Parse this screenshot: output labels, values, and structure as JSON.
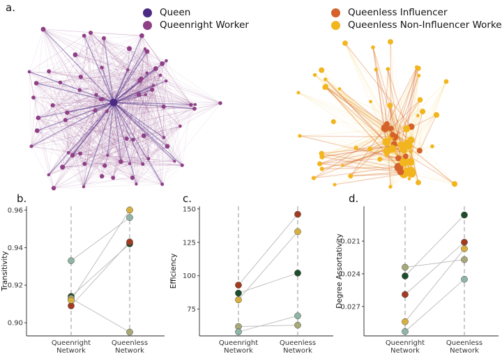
{
  "figure": {
    "panel_labels": [
      "a.",
      "b.",
      "c.",
      "d."
    ]
  },
  "legend": {
    "left": [
      {
        "label": "Queen",
        "color": "#4b2a84"
      },
      {
        "label": "Queenright Worker",
        "color": "#8e3f86"
      }
    ],
    "right": [
      {
        "label": "Queenless Influencer",
        "color": "#d4622a"
      },
      {
        "label": "Queenless Non-Influencer Worker",
        "color": "#f2b51e"
      }
    ]
  },
  "networks": {
    "queenright": {
      "queen_color": "#4b2a84",
      "worker_color": "#8e3f86"
    },
    "queenless": {
      "influencer_color": "#d4622a",
      "worker_color": "#f2b51e"
    }
  },
  "chart_data": [
    {
      "type": "scatter",
      "panel": "b.",
      "ylabel": "Transitivity",
      "categories": [
        "Queenright\nNetwork",
        "Queenless\nNetwork"
      ],
      "ylim": [
        0.893,
        0.962
      ],
      "yticks": [
        0.9,
        0.92,
        0.94,
        0.96
      ],
      "ytick_labels": [
        "0.90",
        "0.92",
        "0.94",
        "0.96"
      ],
      "series": [
        {
          "color": "#8fb5a5",
          "values": [
            0.933,
            0.956
          ]
        },
        {
          "color": "#1e4d2b",
          "values": [
            0.914,
            0.942
          ]
        },
        {
          "color": "#a8a878",
          "values": [
            0.913,
            0.895
          ]
        },
        {
          "color": "#a33b20",
          "values": [
            0.909,
            0.943
          ]
        },
        {
          "color": "#d7b040",
          "values": [
            0.912,
            0.96
          ]
        }
      ]
    },
    {
      "type": "scatter",
      "panel": "c.",
      "ylabel": "Efficiency",
      "categories": [
        "Queenright\nNetwork",
        "Queenless\nNetwork"
      ],
      "ylim": [
        55,
        152
      ],
      "yticks": [
        75,
        100,
        125,
        150
      ],
      "ytick_labels": [
        "75",
        "100",
        "125",
        "150"
      ],
      "series": [
        {
          "color": "#a33b20",
          "values": [
            93,
            146
          ]
        },
        {
          "color": "#1e4d2b",
          "values": [
            87,
            102
          ]
        },
        {
          "color": "#d7b040",
          "values": [
            82,
            133
          ]
        },
        {
          "color": "#a8a878",
          "values": [
            62,
            63
          ]
        },
        {
          "color": "#8fb5a5",
          "values": [
            58,
            70
          ]
        }
      ]
    },
    {
      "type": "scatter",
      "panel": "d.",
      "ylabel": "Degree Assortativity",
      "categories": [
        "Queenright\nNetwork",
        "Queenless\nNetwork"
      ],
      "ylim": [
        -0.0297,
        -0.0178
      ],
      "yticks": [
        -0.021,
        -0.024,
        -0.027
      ],
      "ytick_labels": [
        "-0.021",
        "-0.024",
        "-0.027"
      ],
      "series": [
        {
          "color": "#a8a878",
          "values": [
            -0.0234,
            -0.0227
          ]
        },
        {
          "color": "#1e4d2b",
          "values": [
            -0.0242,
            -0.0186
          ]
        },
        {
          "color": "#a33b20",
          "values": [
            -0.0259,
            -0.0211
          ]
        },
        {
          "color": "#d7b040",
          "values": [
            -0.0284,
            -0.0217
          ]
        },
        {
          "color": "#8fb5a5",
          "values": [
            -0.0293,
            -0.0245
          ]
        }
      ]
    }
  ]
}
